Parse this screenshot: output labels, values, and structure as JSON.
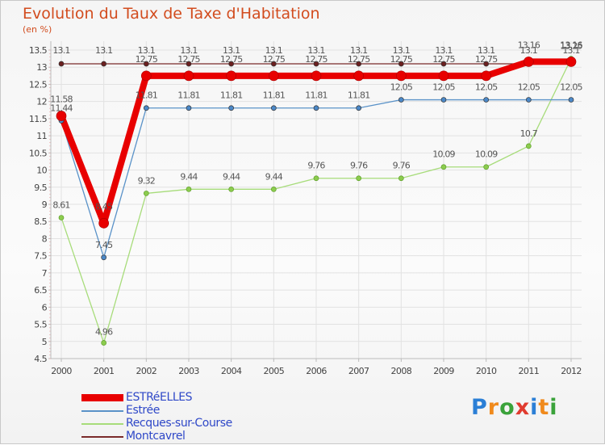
{
  "title": "Evolution du Taux de Taxe d'Habitation",
  "unit_label": "(en %)",
  "brand": {
    "name": "Proxiti",
    "letters": [
      "P",
      "r",
      "o",
      "x",
      "i",
      "t",
      "i"
    ],
    "colors": [
      "#2b7fd6",
      "#f08a1c",
      "#3aa23a",
      "#e03b2f",
      "#2b7fd6",
      "#f08a1c",
      "#3aa23a"
    ]
  },
  "chart_data": {
    "type": "line",
    "categories": [
      "2000",
      "2001",
      "2002",
      "2003",
      "2004",
      "2005",
      "2006",
      "2007",
      "2008",
      "2009",
      "2010",
      "2011",
      "2012"
    ],
    "yticks": [
      "4.5",
      "5",
      "5.5",
      "6",
      "6.5",
      "7",
      "7.5",
      "8",
      "8.5",
      "9",
      "9.5",
      "10",
      "10.5",
      "11",
      "11.5",
      "12",
      "12.5",
      "13",
      "13.5"
    ],
    "ylim": [
      4.5,
      13.5
    ],
    "series": [
      {
        "name": "ESTRéELLES",
        "color": "#e80000",
        "width": 8,
        "radius": 6,
        "values": [
          11.58,
          8.45,
          12.75,
          12.75,
          12.75,
          12.75,
          12.75,
          12.75,
          12.75,
          12.75,
          12.75,
          13.16,
          13.16
        ],
        "labels": [
          "11.58",
          "8.45",
          "12.75",
          "12.75",
          "12.75",
          "12.75",
          "12.75",
          "12.75",
          "12.75",
          "12.75",
          "12.75",
          "13.16",
          "13.16"
        ]
      },
      {
        "name": "Estrée",
        "color": "#5a92c8",
        "width": 1.3,
        "radius": 3,
        "values": [
          11.44,
          7.45,
          11.81,
          11.81,
          11.81,
          11.81,
          11.81,
          11.81,
          12.05,
          12.05,
          12.05,
          12.05,
          12.05
        ],
        "labels": [
          "11.44",
          "7.45",
          "11.81",
          "11.81",
          "11.81",
          "11.81",
          "11.81",
          "11.81",
          "12.05",
          "12.05",
          "12.05",
          "12.05",
          "12.05"
        ]
      },
      {
        "name": "Recques-sur-Course",
        "color": "#a7dc7a",
        "width": 1.3,
        "radius": 3,
        "values": [
          8.61,
          4.96,
          9.32,
          9.44,
          9.44,
          9.44,
          9.76,
          9.76,
          9.76,
          10.09,
          10.09,
          10.7,
          13.25
        ],
        "labels": [
          "8.61",
          "4.96",
          "9.32",
          "9.44",
          "9.44",
          "9.44",
          "9.76",
          "9.76",
          "9.76",
          "10.09",
          "10.09",
          "10.7",
          "13.25"
        ]
      },
      {
        "name": "Montcavrel",
        "color": "#7a2a2a",
        "width": 1.3,
        "radius": 3,
        "values": [
          13.1,
          13.1,
          13.1,
          13.1,
          13.1,
          13.1,
          13.1,
          13.1,
          13.1,
          13.1,
          13.1,
          13.1,
          13.1
        ],
        "labels": [
          "13.1",
          "13.1",
          "13.1",
          "13.1",
          "13.1",
          "13.1",
          "13.1",
          "13.1",
          "13.1",
          "13.1",
          "13.1",
          "13.1",
          "13.1"
        ]
      }
    ]
  }
}
